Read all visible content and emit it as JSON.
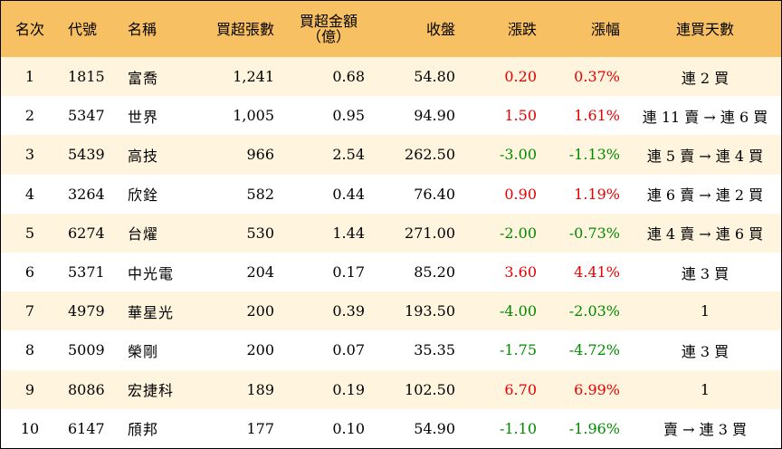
{
  "headers": {
    "rank": "名次",
    "code": "代號",
    "name": "名稱",
    "net_buy_lots": "買超張數",
    "net_buy_amount_line1": "買超金額",
    "net_buy_amount_line2": "（億）",
    "close": "收盤",
    "change": "漲跌",
    "change_pct": "漲幅",
    "consec_days": "連買天數"
  },
  "rows": [
    {
      "rank": "1",
      "code": "1815",
      "name": "富喬",
      "lots": "1,241",
      "amount": "0.68",
      "close": "54.80",
      "change": "0.20",
      "pct": "0.37%",
      "dir": "up",
      "days": "連 2 買"
    },
    {
      "rank": "2",
      "code": "5347",
      "name": "世界",
      "lots": "1,005",
      "amount": "0.95",
      "close": "94.90",
      "change": "1.50",
      "pct": "1.61%",
      "dir": "up",
      "days": "連 11 賣 → 連 6 買"
    },
    {
      "rank": "3",
      "code": "5439",
      "name": "高技",
      "lots": "966",
      "amount": "2.54",
      "close": "262.50",
      "change": "-3.00",
      "pct": "-1.13%",
      "dir": "down",
      "days": "連 5 賣 → 連 4 買"
    },
    {
      "rank": "4",
      "code": "3264",
      "name": "欣銓",
      "lots": "582",
      "amount": "0.44",
      "close": "76.40",
      "change": "0.90",
      "pct": "1.19%",
      "dir": "up",
      "days": "連 6 賣 → 連 2 買"
    },
    {
      "rank": "5",
      "code": "6274",
      "name": "台燿",
      "lots": "530",
      "amount": "1.44",
      "close": "271.00",
      "change": "-2.00",
      "pct": "-0.73%",
      "dir": "down",
      "days": "連 4 賣 → 連 6 買"
    },
    {
      "rank": "6",
      "code": "5371",
      "name": "中光電",
      "lots": "204",
      "amount": "0.17",
      "close": "85.20",
      "change": "3.60",
      "pct": "4.41%",
      "dir": "up",
      "days": "連 3 買"
    },
    {
      "rank": "7",
      "code": "4979",
      "name": "華星光",
      "lots": "200",
      "amount": "0.39",
      "close": "193.50",
      "change": "-4.00",
      "pct": "-2.03%",
      "dir": "down",
      "days": "1"
    },
    {
      "rank": "8",
      "code": "5009",
      "name": "榮剛",
      "lots": "200",
      "amount": "0.07",
      "close": "35.35",
      "change": "-1.75",
      "pct": "-4.72%",
      "dir": "down",
      "days": "連 3 買"
    },
    {
      "rank": "9",
      "code": "8086",
      "name": "宏捷科",
      "lots": "189",
      "amount": "0.19",
      "close": "102.50",
      "change": "6.70",
      "pct": "6.99%",
      "dir": "up",
      "days": "1"
    },
    {
      "rank": "10",
      "code": "6147",
      "name": "頎邦",
      "lots": "177",
      "amount": "0.10",
      "close": "54.90",
      "change": "-1.10",
      "pct": "-1.96%",
      "dir": "down",
      "days": "賣 → 連 3 買"
    }
  ],
  "colors": {
    "header_bg": "#f7c063",
    "stripe_bg": "#fff4de",
    "up": "#e60000",
    "down": "#008a00"
  }
}
